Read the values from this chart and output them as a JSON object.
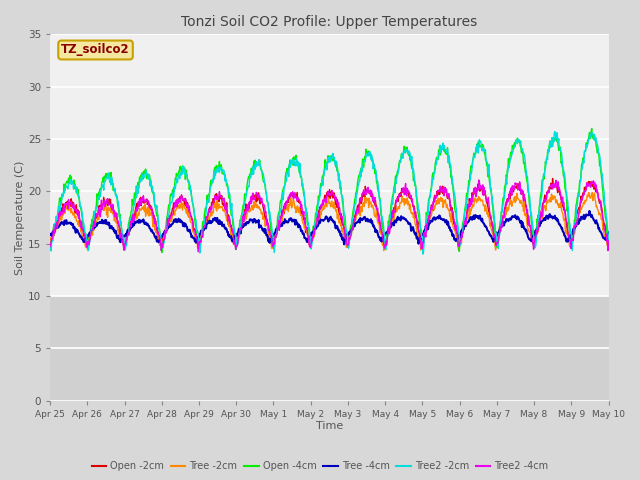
{
  "title": "Tonzi Soil CO2 Profile: Upper Temperatures",
  "xlabel": "Time",
  "ylabel": "Soil Temperature (C)",
  "ylim": [
    0,
    35
  ],
  "yticks": [
    0,
    5,
    10,
    15,
    20,
    25,
    30,
    35
  ],
  "legend_label": "TZ_soilco2",
  "legend_box_facecolor": "#f5e6a0",
  "legend_box_edgecolor": "#c8a000",
  "legend_text_color": "#8b0000",
  "series_colors": {
    "Open -2cm": "#dd0000",
    "Tree -2cm": "#ff8800",
    "Open -4cm": "#00ee00",
    "Tree -4cm": "#0000bb",
    "Tree2 -2cm": "#00dddd",
    "Tree2 -4cm": "#ee00ee"
  },
  "tick_labels": [
    "Apr 25",
    "Apr 26",
    "Apr 27",
    "Apr 28",
    "Apr 29",
    "Apr 30",
    "May 1",
    "May 2",
    "May 3",
    "May 4",
    "May 5",
    "May 6",
    "May 7",
    "May 8",
    "May 9",
    "May 10"
  ],
  "n_points": 1000,
  "n_days": 15
}
